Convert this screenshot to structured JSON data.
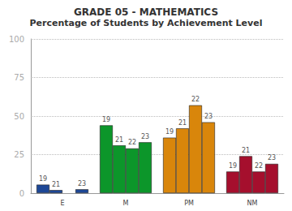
{
  "chart_data": {
    "type": "bar",
    "title": "GRADE 05 - MATHEMATICS",
    "subtitle": "Percentage of Students by Achievement Level",
    "categories": [
      "E",
      "M",
      "PM",
      "NM"
    ],
    "series": [
      {
        "name": "19",
        "colors": [
          "#1d4796",
          "#0c962a",
          "#d9860b",
          "#a50f2d"
        ],
        "values": [
          5.5,
          44,
          36,
          14
        ]
      },
      {
        "name": "21",
        "colors": [
          "#1d4796",
          "#0c962a",
          "#d9860b",
          "#a50f2d"
        ],
        "values": [
          2,
          31,
          42,
          24
        ]
      },
      {
        "name": "22",
        "colors": [
          "#1d4796",
          "#0c962a",
          "#d9860b",
          "#a50f2d"
        ],
        "values": [
          null,
          29,
          57,
          14
        ]
      },
      {
        "name": "23",
        "colors": [
          "#1d4796",
          "#0c962a",
          "#d9860b",
          "#a50f2d"
        ],
        "values": [
          2.5,
          33,
          46,
          19
        ]
      }
    ],
    "ylim": [
      0,
      100
    ],
    "yticks": [
      0,
      25,
      50,
      75,
      100
    ],
    "grid": true
  }
}
